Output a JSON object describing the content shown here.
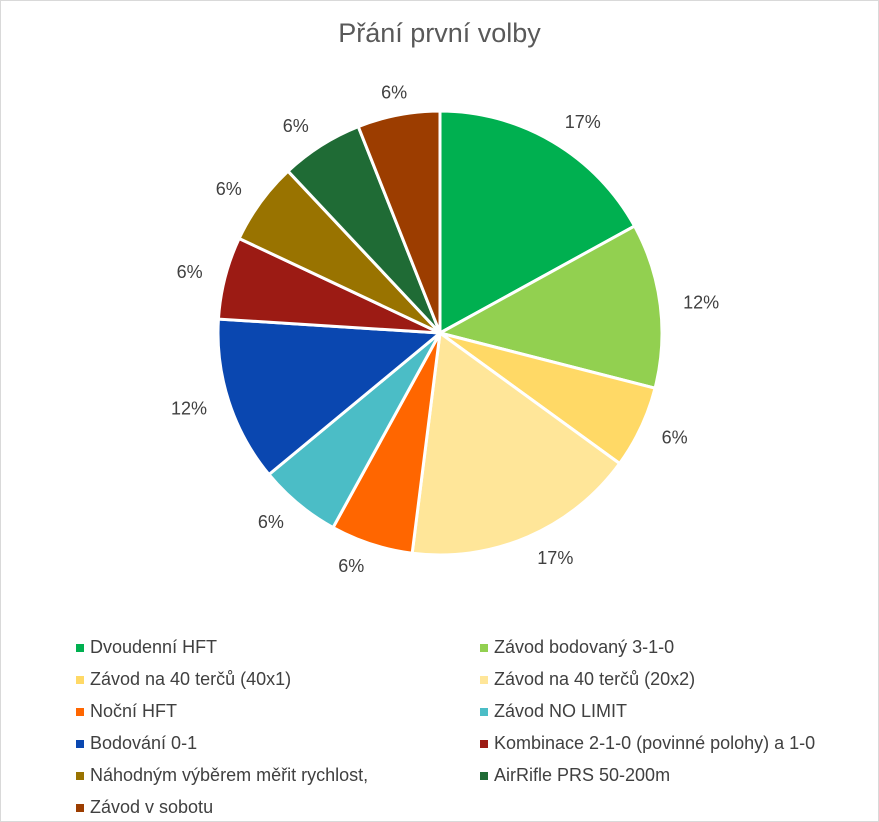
{
  "chart_data": {
    "type": "pie",
    "title": "Přání první volby",
    "slices": [
      {
        "name": "Dvoudenní HFT",
        "value": 17,
        "label": "17%",
        "color": "#00b050"
      },
      {
        "name": "Závod bodovaný 3-1-0",
        "value": 12,
        "label": "12%",
        "color": "#92d050"
      },
      {
        "name": "Závod na 40 terčů (40x1)",
        "value": 6,
        "label": "6%",
        "color": "#ffd966"
      },
      {
        "name": "Závod na 40 terčů (20x2)",
        "value": 17,
        "label": "17%",
        "color": "#ffe699"
      },
      {
        "name": "Noční HFT",
        "value": 6,
        "label": "6%",
        "color": "#ff6600"
      },
      {
        "name": "Závod NO LIMIT",
        "value": 6,
        "label": "6%",
        "color": "#4bbdc6"
      },
      {
        "name": "Bodování 0-1",
        "value": 12,
        "label": "12%",
        "color": "#0a47b0"
      },
      {
        "name": "Kombinace 2-1-0 (povinné polohy) a 1-0",
        "value": 6,
        "label": "6%",
        "color": "#9c1b14"
      },
      {
        "name": "Náhodným výběrem měřit rychlost,",
        "value": 6,
        "label": "6%",
        "color": "#997300"
      },
      {
        "name": "AirRifle PRS 50-200m",
        "value": 6,
        "label": "6%",
        "color": "#1f6b35"
      },
      {
        "name": "Závod v sobotu",
        "value": 6,
        "label": "6%",
        "color": "#9c3d00"
      }
    ],
    "legend_position": "bottom"
  }
}
